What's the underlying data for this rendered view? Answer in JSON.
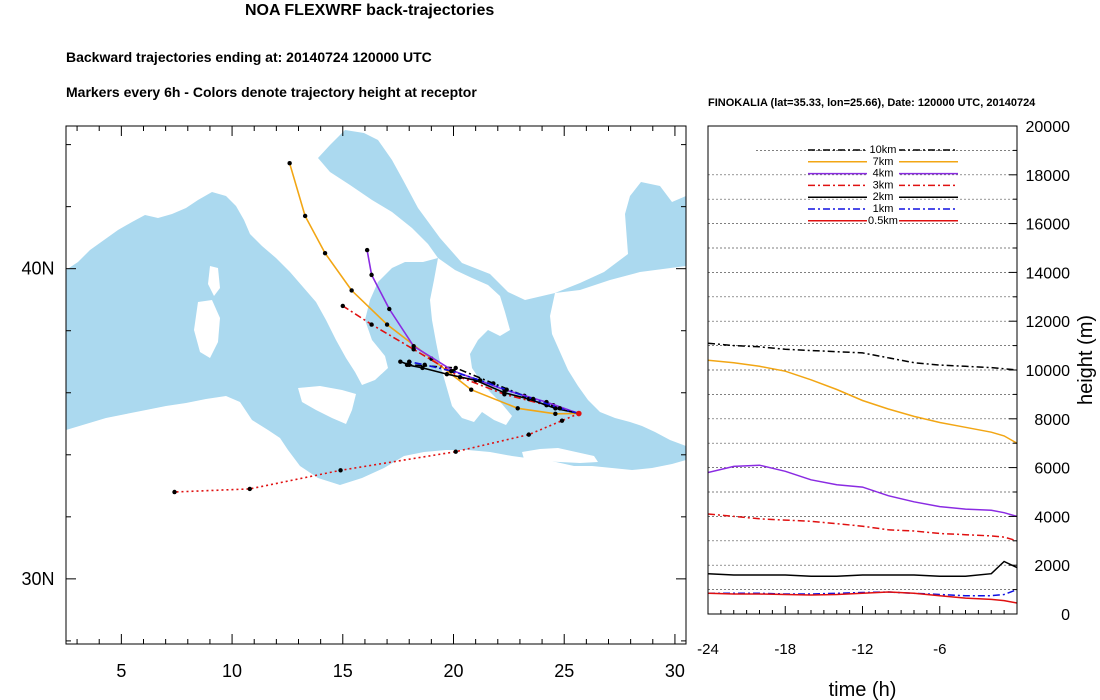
{
  "header": {
    "title": "NOA FLEXWRF back-trajectories",
    "subtitle1": "Backward trajectories ending at: 20140724  120000 UTC",
    "subtitle2": "Markers every 6h - Colors denote trajectory height at receptor",
    "right_title": "FINOKALIA (lat=35.33,  lon=25.66), Date: 120000 UTC, 20140724"
  },
  "colors": {
    "sea": "#abd9ef",
    "land": "#ffffff",
    "t10km": "#000000",
    "t7km": "#f2a614",
    "t4km": "#8a2be2",
    "t3km": "#e01010",
    "t2km": "#000000",
    "t1km": "#1010e0",
    "t05km": "#e01010"
  },
  "chart_data": [
    {
      "type": "line",
      "title": "NOA FLEXWRF back-trajectories",
      "subtitle": "Backward trajectories ending at: 20140724  120000 UTC",
      "map_area": "Central / Eastern Mediterranean",
      "xlim": [
        2.5,
        30.5
      ],
      "ylim": [
        27.9,
        44.6
      ],
      "xticks": [
        5,
        10,
        15,
        20,
        25,
        30
      ],
      "xtick_labels": [
        "5",
        "10",
        "15",
        "20",
        "25",
        "30"
      ],
      "yticks": [
        30,
        40
      ],
      "ytick_labels": [
        "30N",
        "40N"
      ],
      "receptor": {
        "lon": 25.66,
        "lat": 35.33
      },
      "series": [
        {
          "height": "10km",
          "style": "dashdot",
          "lon": [
            25.66,
            24.5,
            23.2,
            21.8,
            20.1,
            18.0,
            17.6
          ],
          "lat": [
            35.33,
            35.6,
            35.9,
            36.3,
            36.8,
            36.9,
            37.0
          ]
        },
        {
          "height": "7km",
          "style": "solid",
          "lon": [
            25.66,
            24.6,
            22.9,
            20.8,
            19.0,
            17.0,
            15.4,
            14.2,
            13.3,
            12.6
          ],
          "lat": [
            35.33,
            35.32,
            35.5,
            36.1,
            37.1,
            38.2,
            39.3,
            40.5,
            41.7,
            43.4
          ]
        },
        {
          "height": "4km",
          "style": "solid",
          "lon": [
            25.66,
            24.2,
            22.3,
            20.0,
            18.2,
            17.1,
            16.3,
            16.1
          ],
          "lat": [
            35.33,
            35.7,
            36.1,
            36.7,
            37.5,
            38.7,
            39.8,
            40.6
          ]
        },
        {
          "height": "3km",
          "style": "dashdot",
          "lon": [
            25.66,
            24.2,
            22.3,
            20.3,
            18.2,
            16.3,
            15.0
          ],
          "lat": [
            35.33,
            35.6,
            35.95,
            36.5,
            37.4,
            38.2,
            38.8
          ]
        },
        {
          "height": "2km",
          "style": "solid",
          "lon": [
            25.66,
            24.6,
            23.4,
            22.3,
            21.0,
            19.7,
            18.6,
            17.9
          ],
          "lat": [
            35.33,
            35.5,
            35.8,
            36.0,
            36.4,
            36.6,
            36.8,
            36.9
          ]
        },
        {
          "height": "1km",
          "style": "dashdot",
          "lon": [
            25.66,
            24.8,
            23.6,
            22.4,
            21.2,
            19.9,
            18.7,
            18.0
          ],
          "lat": [
            35.33,
            35.5,
            35.8,
            36.1,
            36.4,
            36.7,
            36.9,
            37.0
          ]
        },
        {
          "height": "0.5km",
          "style": "dotted",
          "lon": [
            25.66,
            24.9,
            23.4,
            20.1,
            14.9,
            10.8,
            7.4
          ],
          "lat": [
            35.33,
            35.1,
            34.65,
            34.1,
            33.5,
            32.9,
            32.8
          ]
        }
      ],
      "markers_every": "6h"
    },
    {
      "type": "line",
      "title": "FINOKALIA (lat=35.33,  lon=25.66), Date: 120000 UTC, 20140724",
      "xlabel": "time (h)",
      "ylabel": "height (m)",
      "xlim": [
        -24,
        0
      ],
      "ylim": [
        0,
        20000
      ],
      "xticks": [
        -24,
        -18,
        -12,
        -6
      ],
      "yticks": [
        0,
        2000,
        4000,
        6000,
        8000,
        10000,
        12000,
        14000,
        16000,
        18000,
        20000
      ],
      "grid": true,
      "legend_position": "top-center",
      "x": [
        -24,
        -22,
        -20,
        -18,
        -16,
        -14,
        -12,
        -10,
        -8,
        -6,
        -4,
        -2,
        -1,
        0
      ],
      "series": [
        {
          "name": "10km",
          "style": "dashdot",
          "values": [
            11100,
            11000,
            10950,
            10850,
            10800,
            10750,
            10700,
            10500,
            10300,
            10200,
            10150,
            10100,
            10050,
            10000
          ]
        },
        {
          "name": "7km",
          "style": "solid",
          "values": [
            10400,
            10300,
            10150,
            9950,
            9600,
            9200,
            8750,
            8400,
            8100,
            7850,
            7650,
            7450,
            7300,
            7000
          ]
        },
        {
          "name": "4km",
          "style": "solid",
          "values": [
            5800,
            6050,
            6100,
            5850,
            5500,
            5300,
            5200,
            4850,
            4600,
            4400,
            4300,
            4250,
            4150,
            4000
          ]
        },
        {
          "name": "3km",
          "style": "dashdot",
          "values": [
            4100,
            4000,
            3900,
            3850,
            3800,
            3700,
            3600,
            3450,
            3400,
            3300,
            3250,
            3200,
            3150,
            3000
          ]
        },
        {
          "name": "2km",
          "style": "solid",
          "values": [
            1650,
            1600,
            1600,
            1600,
            1550,
            1550,
            1600,
            1600,
            1600,
            1550,
            1550,
            1650,
            2150,
            1900
          ]
        },
        {
          "name": "1km",
          "style": "dashdot",
          "values": [
            850,
            850,
            850,
            820,
            820,
            850,
            880,
            900,
            850,
            800,
            750,
            750,
            800,
            1000
          ]
        },
        {
          "name": "0.5km",
          "style": "solid",
          "values": [
            850,
            820,
            820,
            800,
            780,
            800,
            850,
            900,
            850,
            750,
            650,
            600,
            550,
            450
          ]
        }
      ]
    }
  ]
}
